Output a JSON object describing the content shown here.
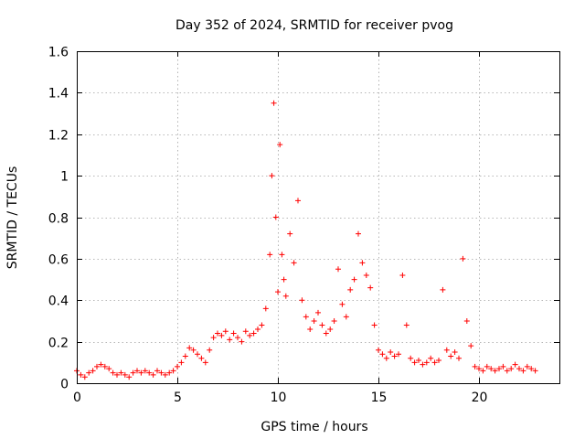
{
  "chart_data": {
    "type": "scatter",
    "title": "Day 352 of 2024, SRMTID for receiver pvog",
    "xlabel": "GPS time / hours",
    "ylabel": "SRMTID / TECUs",
    "xlim": [
      0,
      24
    ],
    "ylim": [
      0,
      1.6
    ],
    "xticks": [
      0,
      5,
      10,
      15,
      20
    ],
    "xtick_labels": [
      "0",
      "5",
      "10",
      "15",
      "20"
    ],
    "yticks": [
      0,
      0.2,
      0.4,
      0.6,
      0.8,
      1,
      1.2,
      1.4,
      1.6
    ],
    "ytick_labels": [
      "0",
      "0.2",
      "0.4",
      "0.6",
      "0.8",
      "1",
      "1.2",
      "1.4",
      "1.6"
    ],
    "grid": true,
    "marker": "+",
    "series": [
      {
        "name": "SRMTID",
        "color": "#ff0000",
        "x": [
          0.0,
          0.2,
          0.4,
          0.6,
          0.8,
          1.0,
          1.2,
          1.4,
          1.6,
          1.8,
          2.0,
          2.2,
          2.4,
          2.6,
          2.8,
          3.0,
          3.2,
          3.4,
          3.6,
          3.8,
          4.0,
          4.2,
          4.4,
          4.6,
          4.8,
          5.0,
          5.2,
          5.4,
          5.6,
          5.8,
          6.0,
          6.2,
          6.4,
          6.6,
          6.8,
          7.0,
          7.2,
          7.4,
          7.6,
          7.8,
          8.0,
          8.2,
          8.4,
          8.6,
          8.8,
          9.0,
          9.2,
          9.4,
          9.6,
          9.7,
          9.8,
          9.9,
          10.0,
          10.1,
          10.2,
          10.3,
          10.4,
          10.6,
          10.8,
          11.0,
          11.2,
          11.4,
          11.6,
          11.8,
          12.0,
          12.2,
          12.4,
          12.6,
          12.8,
          13.0,
          13.2,
          13.4,
          13.6,
          13.8,
          14.0,
          14.2,
          14.4,
          14.6,
          14.8,
          15.0,
          15.2,
          15.4,
          15.6,
          15.8,
          16.0,
          16.2,
          16.4,
          16.6,
          16.8,
          17.0,
          17.2,
          17.4,
          17.6,
          17.8,
          18.0,
          18.2,
          18.4,
          18.6,
          18.8,
          19.0,
          19.2,
          19.4,
          19.6,
          19.8,
          20.0,
          20.2,
          20.4,
          20.6,
          20.8,
          21.0,
          21.2,
          21.4,
          21.6,
          21.8,
          22.0,
          22.2,
          22.4,
          22.6,
          22.8
        ],
        "values": [
          0.06,
          0.04,
          0.03,
          0.05,
          0.06,
          0.08,
          0.09,
          0.08,
          0.07,
          0.05,
          0.04,
          0.05,
          0.04,
          0.03,
          0.05,
          0.06,
          0.05,
          0.06,
          0.05,
          0.04,
          0.06,
          0.05,
          0.04,
          0.05,
          0.06,
          0.08,
          0.1,
          0.13,
          0.17,
          0.16,
          0.14,
          0.12,
          0.1,
          0.16,
          0.22,
          0.24,
          0.23,
          0.25,
          0.21,
          0.24,
          0.22,
          0.2,
          0.25,
          0.23,
          0.24,
          0.26,
          0.28,
          0.36,
          0.62,
          1.0,
          1.35,
          0.8,
          0.44,
          1.15,
          0.62,
          0.5,
          0.42,
          0.72,
          0.58,
          0.88,
          0.4,
          0.32,
          0.26,
          0.3,
          0.34,
          0.28,
          0.24,
          0.26,
          0.3,
          0.55,
          0.38,
          0.32,
          0.45,
          0.5,
          0.72,
          0.58,
          0.52,
          0.46,
          0.28,
          0.16,
          0.14,
          0.12,
          0.15,
          0.13,
          0.14,
          0.52,
          0.28,
          0.12,
          0.1,
          0.11,
          0.09,
          0.1,
          0.12,
          0.1,
          0.11,
          0.45,
          0.16,
          0.13,
          0.15,
          0.12,
          0.6,
          0.3,
          0.18,
          0.08,
          0.07,
          0.06,
          0.08,
          0.07,
          0.06,
          0.07,
          0.08,
          0.06,
          0.07,
          0.09,
          0.07,
          0.06,
          0.08,
          0.07,
          0.06
        ]
      }
    ]
  }
}
